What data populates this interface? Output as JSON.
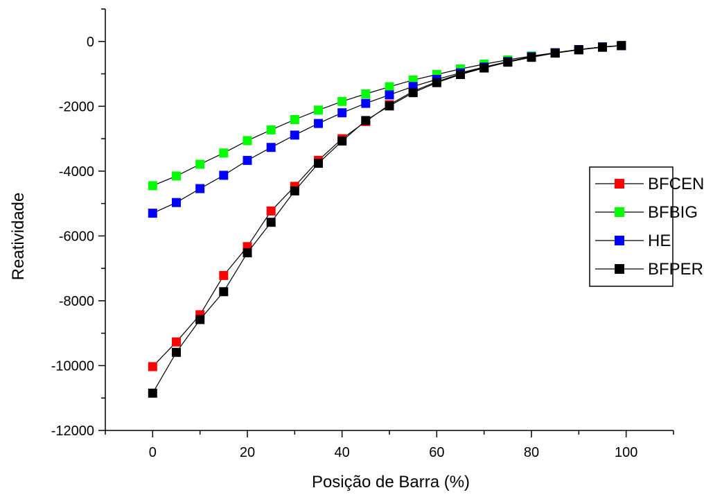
{
  "chart_data": {
    "type": "line",
    "xlabel": "Posição de Barra (%)",
    "ylabel": "Reatividade",
    "xlim": [
      -10,
      110
    ],
    "ylim": [
      -12000,
      1000
    ],
    "xticks": [
      0,
      20,
      40,
      60,
      80,
      100
    ],
    "yticks": [
      0,
      -2000,
      -4000,
      -6000,
      -8000,
      -10000,
      -12000
    ],
    "xtick_labels": [
      "0",
      "20",
      "40",
      "60",
      "80",
      "100"
    ],
    "ytick_labels": [
      "0",
      "-2000",
      "-4000",
      "-6000",
      "-8000",
      "-10000",
      "-12000"
    ],
    "legend_position": "right",
    "grid": false,
    "series": [
      {
        "name": "BFCEN",
        "color": "#ff0000",
        "x": [
          0,
          5,
          10,
          15,
          20,
          25,
          30,
          35,
          40,
          45,
          50,
          55,
          60,
          65,
          70,
          75,
          80,
          85,
          90,
          95,
          99
        ],
        "y": [
          -10030,
          -9270,
          -8430,
          -7220,
          -6330,
          -5230,
          -4470,
          -3670,
          -3000,
          -2470,
          -1950,
          -1540,
          -1240,
          -1000,
          -800,
          -620,
          -470,
          -350,
          -250,
          -170,
          -130
        ]
      },
      {
        "name": "BFBIG",
        "color": "#00ff00",
        "x": [
          0,
          5,
          10,
          15,
          20,
          25,
          30,
          35,
          40,
          45,
          50,
          55,
          60,
          65,
          70,
          75,
          80,
          85,
          90,
          95,
          99
        ],
        "y": [
          -4450,
          -4150,
          -3790,
          -3440,
          -3060,
          -2730,
          -2410,
          -2120,
          -1850,
          -1620,
          -1400,
          -1190,
          -1020,
          -850,
          -700,
          -570,
          -450,
          -350,
          -250,
          -170,
          -130
        ]
      },
      {
        "name": "HE",
        "color": "#0000ff",
        "x": [
          0,
          5,
          10,
          15,
          20,
          25,
          30,
          35,
          40,
          45,
          50,
          55,
          60,
          65,
          70,
          75,
          80,
          85,
          90,
          95,
          99
        ],
        "y": [
          -5300,
          -4970,
          -4540,
          -4130,
          -3670,
          -3270,
          -2890,
          -2530,
          -2200,
          -1910,
          -1650,
          -1390,
          -1170,
          -970,
          -790,
          -620,
          -470,
          -350,
          -250,
          -170,
          -130
        ]
      },
      {
        "name": "BFPER",
        "color": "#000000",
        "x": [
          0,
          5,
          10,
          15,
          20,
          25,
          30,
          35,
          40,
          45,
          50,
          55,
          60,
          65,
          70,
          75,
          80,
          85,
          90,
          95,
          99
        ],
        "y": [
          -10850,
          -9590,
          -8580,
          -7720,
          -6520,
          -5580,
          -4610,
          -3760,
          -3070,
          -2440,
          -1990,
          -1580,
          -1270,
          -1020,
          -820,
          -640,
          -490,
          -360,
          -260,
          -180,
          -130
        ]
      }
    ]
  }
}
